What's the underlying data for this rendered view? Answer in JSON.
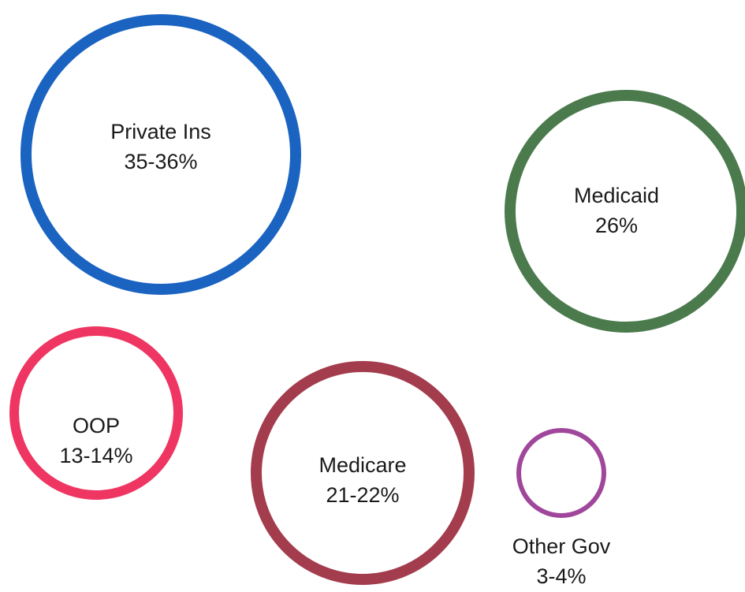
{
  "bubbles": [
    {
      "name": "private-ins",
      "label": "Private Ins",
      "value": "35-36%",
      "color": "#1a63c1"
    },
    {
      "name": "medicaid",
      "label": "Medicaid",
      "value": "26%",
      "color": "#4b7a4d"
    },
    {
      "name": "oop",
      "label": "OOP",
      "value": "13-14%",
      "color": "#ef3562"
    },
    {
      "name": "medicare",
      "label": "Medicare",
      "value": "21-22%",
      "color": "#a33c4c"
    },
    {
      "name": "other-gov",
      "label": "Other Gov",
      "value": "3-4%",
      "color": "#a0479b"
    }
  ]
}
